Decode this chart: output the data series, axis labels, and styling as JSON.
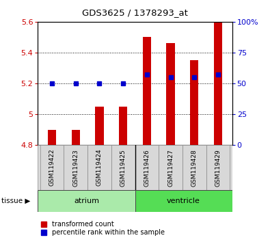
{
  "title": "GDS3625 / 1378293_at",
  "samples": [
    "GSM119422",
    "GSM119423",
    "GSM119424",
    "GSM119425",
    "GSM119426",
    "GSM119427",
    "GSM119428",
    "GSM119429"
  ],
  "groups": [
    "atrium",
    "atrium",
    "atrium",
    "atrium",
    "ventricle",
    "ventricle",
    "ventricle",
    "ventricle"
  ],
  "red_values": [
    4.9,
    4.9,
    5.05,
    5.05,
    5.5,
    5.46,
    5.35,
    5.6
  ],
  "blue_values_pct": [
    50,
    50,
    50,
    50,
    57,
    55,
    55,
    57
  ],
  "ymin": 4.8,
  "ymax": 5.6,
  "pct_min": 0,
  "pct_max": 100,
  "yticks_left": [
    4.8,
    5.0,
    5.2,
    5.4,
    5.6
  ],
  "ytick_labels_left": [
    "4.8",
    "5",
    "5.2",
    "5.4",
    "5.6"
  ],
  "pct_ticks": [
    0,
    25,
    50,
    75,
    100
  ],
  "pct_tick_labels": [
    "0",
    "25",
    "50",
    "75",
    "100%"
  ],
  "red_color": "#cc0000",
  "blue_color": "#0000cc",
  "bar_width": 0.35,
  "atrium_color": "#aaeaaa",
  "ventricle_color": "#55dd55",
  "label_color_left": "#cc0000",
  "label_color_right": "#0000cc",
  "bg_color": "#ffffff",
  "plot_bg": "#ffffff",
  "legend_red": "transformed count",
  "legend_blue": "percentile rank within the sample"
}
